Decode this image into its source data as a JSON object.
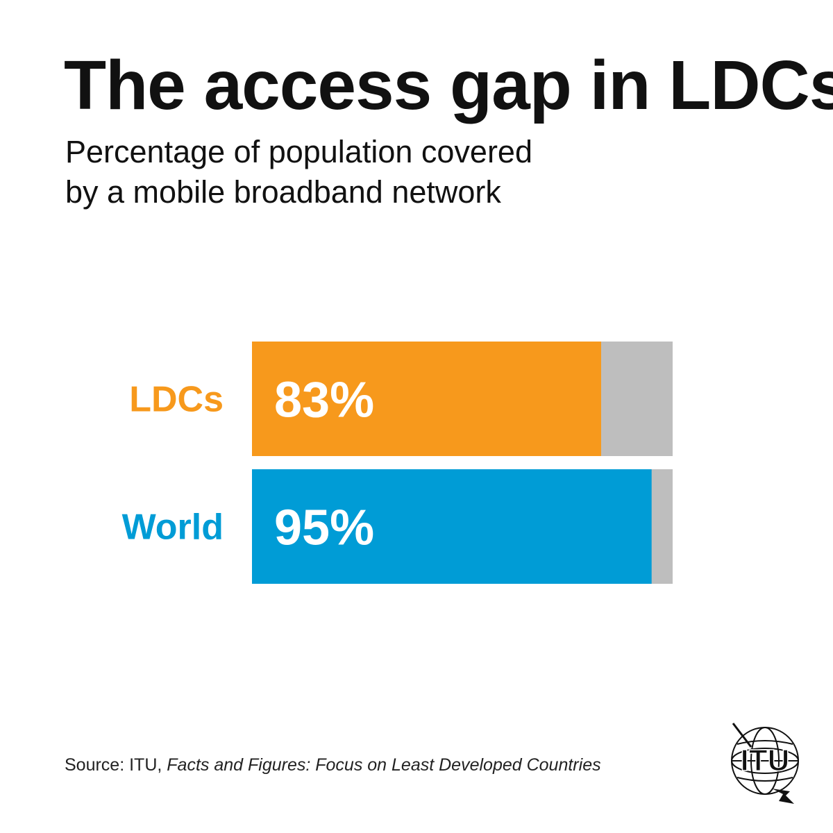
{
  "title": "The access gap in LDCs",
  "subtitle": {
    "line1": "Percentage of population covered",
    "line2": "by a mobile broadband network"
  },
  "chart_data": {
    "type": "bar",
    "orientation": "horizontal",
    "stacked_remainder": true,
    "categories": [
      "LDCs",
      "World"
    ],
    "values": [
      83,
      95
    ],
    "value_labels": [
      "83%",
      "95%"
    ],
    "max": 100,
    "colors": [
      "#F7991C",
      "#009CD6"
    ],
    "remainder_color": "#BEBEBE",
    "title": "The access gap in LDCs"
  },
  "source": {
    "prefix": "Source: ITU, ",
    "publication": "Facts and Figures: Focus on Least Developed Countries"
  },
  "logo": {
    "text": "ITU",
    "icon": "itu-globe-logo-icon"
  }
}
